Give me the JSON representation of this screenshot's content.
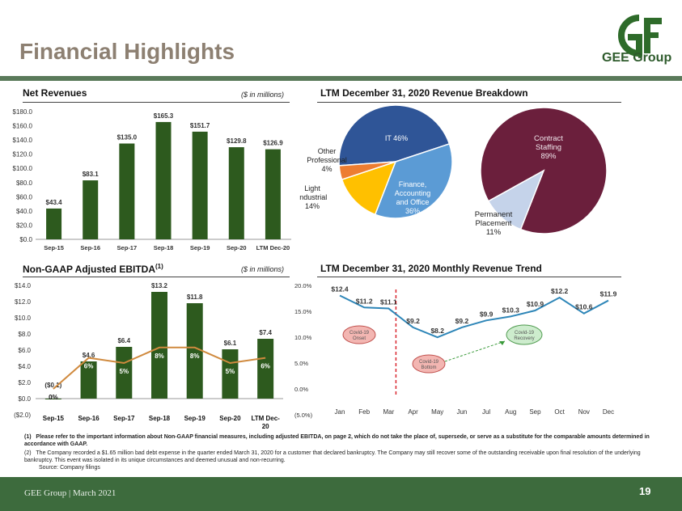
{
  "header": {
    "title": "Financial Highlights",
    "logo_text": "GEE Group"
  },
  "colors": {
    "title": "#8d8072",
    "bar_green": "#2d5a1e",
    "ebitda_line": "#d08a3e",
    "trend_line": "#2e86b8",
    "footer": "#3d6b3d"
  },
  "net_revenues": {
    "title": "Net Revenues",
    "unit": "($ in millions)"
  },
  "ebitda": {
    "title": "Non-GAAP Adjusted EBITDA",
    "superscript": "(1)",
    "unit": "($ in millions)"
  },
  "breakdown": {
    "title": "LTM December 31, 2020 Revenue Breakdown",
    "pie1_labels": {
      "it": [
        "IT 46%"
      ],
      "finance": [
        "Finance,",
        "Accounting",
        "and Office",
        "36%"
      ],
      "light": [
        "Light",
        "Industrial",
        "14%"
      ],
      "other": [
        "Other",
        "Professional",
        "4%"
      ]
    },
    "pie2_labels": {
      "contract": [
        "Contract",
        "Staffing",
        "89%"
      ],
      "permanent": [
        "Permanent",
        "Placement",
        "11%"
      ]
    }
  },
  "trend": {
    "title": "LTM December 31, 2020 Monthly Revenue Trend",
    "covid_onset": [
      "Covid-19",
      "Onset"
    ],
    "covid_bottom": [
      "Covid-19",
      "Bottom"
    ],
    "covid_recovery": [
      "Covid-19",
      "Recovery"
    ]
  },
  "notes": {
    "n1_marker": "(1)",
    "n1": "Please refer to the important information about Non-GAAP financial measures, including adjusted EBITDA, on page 2, which do not take the place of, supersede, or serve as a substitute for the comparable amounts determined in accordance with GAAP.",
    "n2_marker": "(2)",
    "n2": "The Company recorded a $1.65 million bad debt expense in the quarter ended March 31, 2020 for a customer that declared bankruptcy. The Company may still recover some of the outstanding receivable upon final resolution of the underlying bankruptcy. This event was isolated in its unique circumstances and deemed unusual and non-recurring.",
    "source": "Source: Company filings"
  },
  "footer": {
    "text": "GEE Group | March 2021",
    "page": "19"
  },
  "chart_data": [
    {
      "type": "bar",
      "title": "Net Revenues",
      "categories": [
        "Sep-15",
        "Sep-16",
        "Sep-17",
        "Sep-18",
        "Sep-19",
        "Sep-20",
        "LTM Dec-20"
      ],
      "values": [
        43.4,
        83.1,
        135.0,
        165.3,
        151.7,
        129.8,
        126.9
      ],
      "value_labels": [
        "$43.4",
        "$83.1",
        "$135.0",
        "$165.3",
        "$151.7",
        "$129.8",
        "$126.9"
      ],
      "ylim": [
        0,
        180
      ],
      "yticks": [
        "$0.0",
        "$20.0",
        "$40.0",
        "$60.0",
        "$80.0",
        "$100.0",
        "$120.0",
        "$140.0",
        "$160.0",
        "$180.0"
      ]
    },
    {
      "type": "bar",
      "title": "Non-GAAP Adjusted EBITDA",
      "categories": [
        "Sep-15",
        "Sep-16",
        "Sep-17",
        "Sep-18",
        "Sep-19",
        "Sep-20",
        "LTM Dec-20"
      ],
      "values": [
        -0.1,
        4.6,
        6.4,
        13.2,
        11.8,
        6.1,
        7.4
      ],
      "value_labels": [
        "($0.1)",
        "$4.6",
        "$6.4",
        "$13.2",
        "$11.8",
        "$6.1",
        "$7.4"
      ],
      "margin_values": [
        0,
        6,
        5,
        8,
        8,
        5,
        6
      ],
      "margin_labels": [
        "0%",
        "6%",
        "5%",
        "8%",
        "8%",
        "5%",
        "6%"
      ],
      "ylim": [
        -2,
        14
      ],
      "yticks": [
        "($2.0)",
        "$0.0",
        "$2.0",
        "$4.0",
        "$6.0",
        "$8.0",
        "$10.0",
        "$12.0",
        "$14.0"
      ],
      "y2lim": [
        -5,
        20
      ],
      "y2ticks": [
        "(5.0%)",
        "0.0%",
        "5.0%",
        "10.0%",
        "15.0%",
        "20.0%"
      ]
    },
    {
      "type": "pie",
      "title": "LTM December 31, 2020 Revenue Breakdown",
      "labels": [
        "IT",
        "Finance, Accounting and Office",
        "Light Industrial",
        "Other Professional"
      ],
      "values": [
        46,
        36,
        14,
        4
      ],
      "colors": [
        "#2f5597",
        "#5b9bd5",
        "#ffc000",
        "#ed7d31"
      ]
    },
    {
      "type": "pie",
      "labels": [
        "Contract Staffing",
        "Permanent Placement"
      ],
      "values": [
        89,
        11
      ],
      "colors": [
        "#6b1f3c",
        "#c5d3ea"
      ]
    },
    {
      "type": "line",
      "title": "LTM December 31, 2020 Monthly Revenue Trend",
      "x": [
        "Jan",
        "Feb",
        "Mar",
        "Apr",
        "May",
        "Jun",
        "Jul",
        "Aug",
        "Sep",
        "Oct",
        "Nov",
        "Dec"
      ],
      "values": [
        12.4,
        11.2,
        11.1,
        9.2,
        8.2,
        9.2,
        9.9,
        10.3,
        10.9,
        12.2,
        10.6,
        11.9
      ],
      "value_labels": [
        "$12.4",
        "$11.2",
        "$11.1",
        "$9.2",
        "$8.2",
        "$9.2",
        "$9.9",
        "$10.3",
        "$10.9",
        "$12.2",
        "$10.6",
        "$11.9"
      ]
    }
  ]
}
